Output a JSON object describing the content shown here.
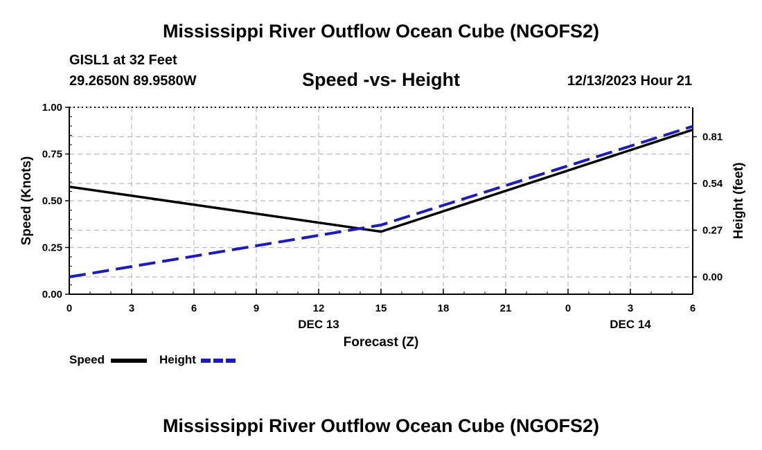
{
  "page": {
    "title_top": "Mississippi River Outflow Ocean Cube (NGOFS2)",
    "title_bottom": "Mississippi River Outflow Ocean Cube (NGOFS2)",
    "station": "GISL1 at 32 Feet",
    "coords": "29.2650N  89.9580W",
    "subtitle": "Speed -vs- Height",
    "datestamp": "12/13/2023 Hour 21"
  },
  "colors": {
    "speed": "#000000",
    "height": "#1a1acc",
    "grid": "#bbbbbb"
  },
  "chart_data": {
    "type": "line",
    "xlabel": "Forecast (Z)",
    "x_hours": [
      0,
      3,
      6,
      9,
      12,
      15,
      18,
      21,
      24,
      27,
      30
    ],
    "x_tick_labels": [
      "0",
      "3",
      "6",
      "9",
      "12",
      "15",
      "18",
      "21",
      "0",
      "3",
      "6"
    ],
    "date_labels": [
      {
        "hour": 12,
        "text": "DEC 13"
      },
      {
        "hour": 27,
        "text": "DEC 14"
      }
    ],
    "xlim": [
      0,
      30
    ],
    "y_left": {
      "label": "Speed (Knots)",
      "ylim": [
        0,
        1.0
      ],
      "ticks": [
        "0.00",
        "0.25",
        "0.50",
        "0.75",
        "1.00"
      ]
    },
    "y_right": {
      "label": "Height (feet)",
      "ylim": [
        -0.1,
        0.98
      ],
      "ticks": [
        "0.00",
        "0.27",
        "0.54",
        "0.81"
      ]
    },
    "series": [
      {
        "name": "Speed",
        "axis": "left",
        "style": "solid",
        "x": [
          0,
          15,
          30
        ],
        "values": [
          0.575,
          0.335,
          0.88
        ]
      },
      {
        "name": "Height",
        "axis": "right",
        "style": "dashed",
        "x": [
          0,
          15,
          30
        ],
        "values": [
          0.0,
          0.3,
          0.87
        ]
      }
    ],
    "legend": [
      {
        "label": "Speed"
      },
      {
        "label": "Height"
      }
    ]
  }
}
